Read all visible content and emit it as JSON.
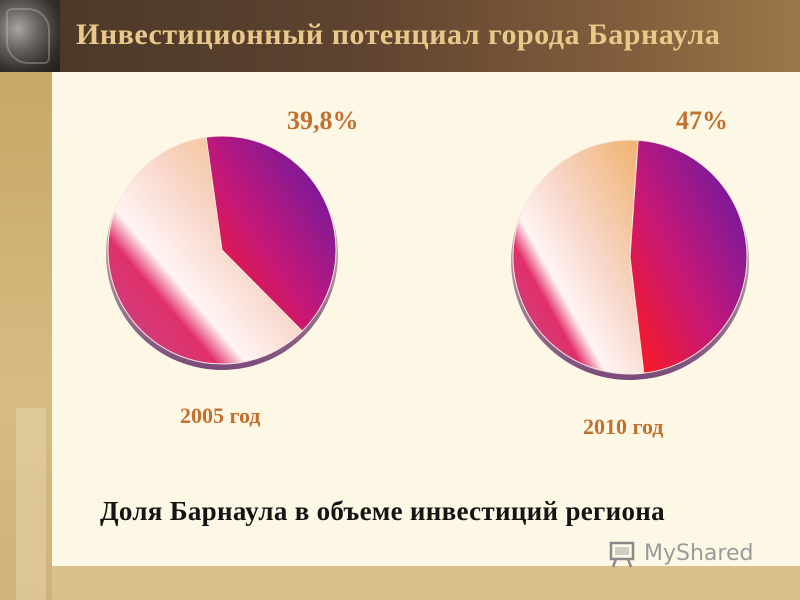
{
  "slide": {
    "title": "Инвестиционный потенциал города Барнаула",
    "caption": "Доля Барнаула в объеме инвестиций  региона"
  },
  "watermark": {
    "text": "MyShared",
    "icon": "presentation-board-icon"
  },
  "colors": {
    "label": "#c2702e",
    "title": "#e8c98a",
    "header": "#5e4330",
    "panel": "#fdf8e6",
    "share_slice": "#8a1fa0",
    "rest_slice": "#e9a0b4"
  },
  "chart_data": [
    {
      "type": "pie",
      "year_label": "2005 год",
      "value_label": "39,8%",
      "slices": [
        {
          "label": "39,8%",
          "value": 39.8
        },
        {
          "value": 60.2
        }
      ]
    },
    {
      "type": "pie",
      "year_label": "2010 год",
      "value_label": "47%",
      "slices": [
        {
          "label": "47%",
          "value": 47
        },
        {
          "value": 53
        }
      ]
    }
  ]
}
